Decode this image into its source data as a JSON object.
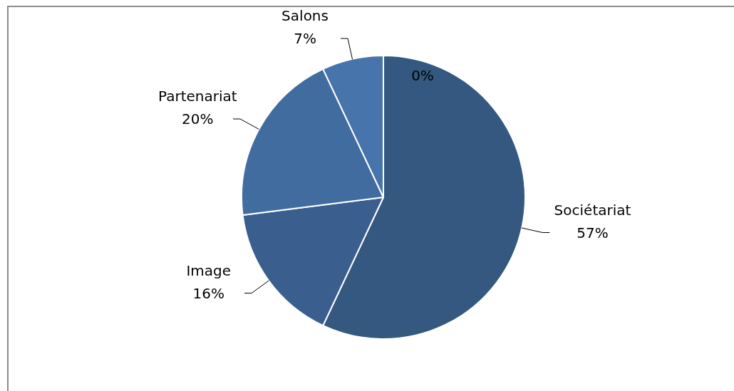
{
  "chart_data": {
    "type": "pie",
    "categories": [
      null,
      "Sociétariat",
      "Image",
      "Partenariat",
      "Salons"
    ],
    "values": [
      0,
      57,
      16,
      20,
      7
    ],
    "value_labels": [
      "0%",
      "57%",
      "16%",
      "20%",
      "7%"
    ],
    "colors": [
      "#34587f",
      "#34587f",
      "#3a5f8e",
      "#416ca0",
      "#4774ab"
    ],
    "legend": false
  }
}
